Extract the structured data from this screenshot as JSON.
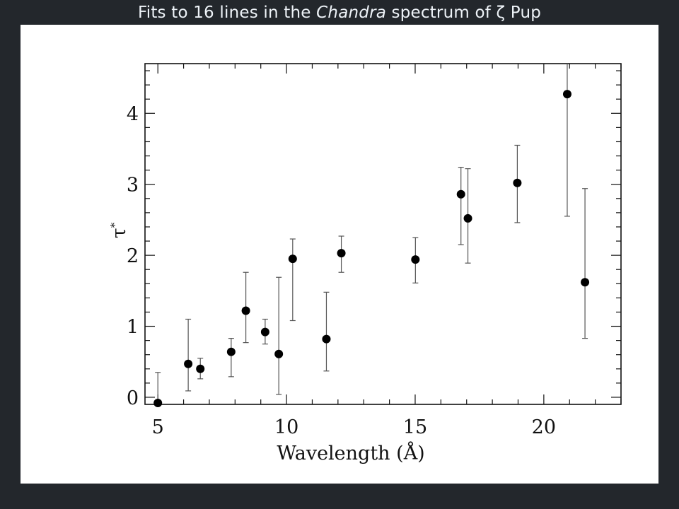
{
  "slide": {
    "title_pre": "Fits to 16 lines in the ",
    "title_italic": "Chandra",
    "title_post": " spectrum of ζ Pup"
  },
  "chart_data": {
    "type": "scatter",
    "xlabel": "Wavelength (Å)",
    "ylabel": "τ*",
    "xlim": [
      4.5,
      23.0
    ],
    "ylim": [
      -0.1,
      4.7
    ],
    "x_ticks": [
      5,
      10,
      15,
      20
    ],
    "y_ticks": [
      0,
      1,
      2,
      3,
      4
    ],
    "grid": false,
    "points": [
      {
        "x": 5.0,
        "y": -0.08,
        "y_low": -0.1,
        "y_high": 0.35
      },
      {
        "x": 6.18,
        "y": 0.47,
        "y_low": 0.09,
        "y_high": 1.1
      },
      {
        "x": 6.65,
        "y": 0.4,
        "y_low": 0.26,
        "y_high": 0.55
      },
      {
        "x": 7.85,
        "y": 0.64,
        "y_low": 0.29,
        "y_high": 0.83
      },
      {
        "x": 8.42,
        "y": 1.22,
        "y_low": 0.77,
        "y_high": 1.76
      },
      {
        "x": 9.17,
        "y": 0.92,
        "y_low": 0.75,
        "y_high": 1.1
      },
      {
        "x": 9.7,
        "y": 0.61,
        "y_low": 0.04,
        "y_high": 1.69
      },
      {
        "x": 10.24,
        "y": 1.95,
        "y_low": 1.08,
        "y_high": 2.23
      },
      {
        "x": 11.55,
        "y": 0.82,
        "y_low": 0.37,
        "y_high": 1.48
      },
      {
        "x": 12.13,
        "y": 2.03,
        "y_low": 1.76,
        "y_high": 2.27
      },
      {
        "x": 15.01,
        "y": 1.94,
        "y_low": 1.61,
        "y_high": 2.25
      },
      {
        "x": 16.78,
        "y": 2.86,
        "y_low": 2.15,
        "y_high": 3.24
      },
      {
        "x": 17.05,
        "y": 2.52,
        "y_low": 1.89,
        "y_high": 3.22
      },
      {
        "x": 18.97,
        "y": 3.02,
        "y_low": 2.46,
        "y_high": 3.55
      },
      {
        "x": 20.91,
        "y": 4.27,
        "y_low": 2.55,
        "y_high": 4.7
      },
      {
        "x": 21.6,
        "y": 1.62,
        "y_low": 0.83,
        "y_high": 2.94
      }
    ]
  }
}
